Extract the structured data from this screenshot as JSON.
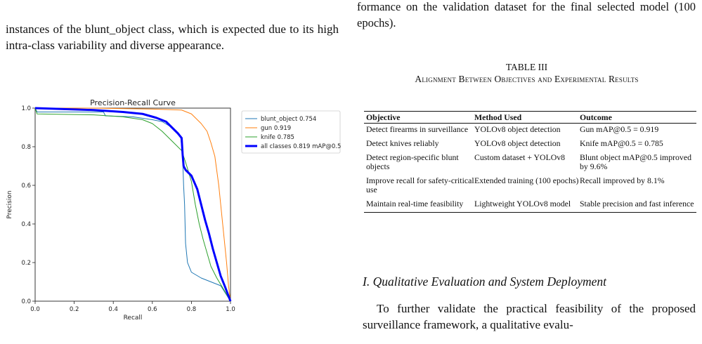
{
  "left_column": {
    "paragraph": "instances of the blunt_object class, which is expected due to its high intra-class variability and diverse appearance."
  },
  "chart_data": {
    "type": "line",
    "title": "Precision-Recall Curve",
    "xlabel": "Recall",
    "ylabel": "Precision",
    "xlim": [
      0.0,
      1.0
    ],
    "ylim": [
      0.0,
      1.0
    ],
    "x_ticks": [
      "0.0",
      "0.2",
      "0.4",
      "0.6",
      "0.8",
      "1.0"
    ],
    "y_ticks": [
      "0.0",
      "0.2",
      "0.4",
      "0.6",
      "0.8",
      "1.0"
    ],
    "grid": false,
    "legend_position": "outside-top-right",
    "series": [
      {
        "name": "blunt_object 0.754",
        "color": "#1f77b4",
        "width": 1,
        "points": [
          [
            0.0,
            1.0
          ],
          [
            0.01,
            0.98
          ],
          [
            0.35,
            0.98
          ],
          [
            0.36,
            0.96
          ],
          [
            0.5,
            0.955
          ],
          [
            0.6,
            0.94
          ],
          [
            0.65,
            0.93
          ],
          [
            0.7,
            0.9
          ],
          [
            0.73,
            0.87
          ],
          [
            0.745,
            0.85
          ],
          [
            0.75,
            0.8
          ],
          [
            0.755,
            0.75
          ],
          [
            0.76,
            0.6
          ],
          [
            0.765,
            0.5
          ],
          [
            0.77,
            0.3
          ],
          [
            0.78,
            0.2
          ],
          [
            0.8,
            0.15
          ],
          [
            0.85,
            0.12
          ],
          [
            0.9,
            0.1
          ],
          [
            0.95,
            0.08
          ],
          [
            1.0,
            0.0
          ]
        ]
      },
      {
        "name": "gun 0.919",
        "color": "#ff7f0e",
        "width": 1,
        "points": [
          [
            0.0,
            1.0
          ],
          [
            0.3,
            1.0
          ],
          [
            0.6,
            0.995
          ],
          [
            0.75,
            0.99
          ],
          [
            0.8,
            0.97
          ],
          [
            0.85,
            0.92
          ],
          [
            0.88,
            0.88
          ],
          [
            0.9,
            0.82
          ],
          [
            0.92,
            0.75
          ],
          [
            0.94,
            0.6
          ],
          [
            0.95,
            0.5
          ],
          [
            0.96,
            0.4
          ],
          [
            0.97,
            0.3
          ],
          [
            0.98,
            0.2
          ],
          [
            0.99,
            0.08
          ],
          [
            1.0,
            0.0
          ]
        ]
      },
      {
        "name": "knife 0.785",
        "color": "#2ca02c",
        "width": 1,
        "points": [
          [
            0.0,
            1.0
          ],
          [
            0.01,
            0.97
          ],
          [
            0.3,
            0.965
          ],
          [
            0.45,
            0.955
          ],
          [
            0.55,
            0.94
          ],
          [
            0.6,
            0.92
          ],
          [
            0.65,
            0.88
          ],
          [
            0.7,
            0.83
          ],
          [
            0.75,
            0.78
          ],
          [
            0.77,
            0.72
          ],
          [
            0.8,
            0.62
          ],
          [
            0.82,
            0.5
          ],
          [
            0.84,
            0.4
          ],
          [
            0.86,
            0.32
          ],
          [
            0.88,
            0.25
          ],
          [
            0.9,
            0.18
          ],
          [
            0.93,
            0.12
          ],
          [
            0.96,
            0.07
          ],
          [
            1.0,
            0.0
          ]
        ]
      },
      {
        "name": "all classes 0.819 mAP@0.5",
        "color": "#0000ff",
        "width": 3,
        "points": [
          [
            0.0,
            1.0
          ],
          [
            0.3,
            0.99
          ],
          [
            0.45,
            0.98
          ],
          [
            0.55,
            0.97
          ],
          [
            0.62,
            0.95
          ],
          [
            0.67,
            0.93
          ],
          [
            0.7,
            0.9
          ],
          [
            0.73,
            0.87
          ],
          [
            0.75,
            0.845
          ],
          [
            0.755,
            0.76
          ],
          [
            0.76,
            0.7
          ],
          [
            0.77,
            0.68
          ],
          [
            0.8,
            0.65
          ],
          [
            0.83,
            0.58
          ],
          [
            0.85,
            0.5
          ],
          [
            0.87,
            0.42
          ],
          [
            0.89,
            0.35
          ],
          [
            0.91,
            0.27
          ],
          [
            0.93,
            0.2
          ],
          [
            0.95,
            0.13
          ],
          [
            0.97,
            0.08
          ],
          [
            1.0,
            0.0
          ]
        ]
      }
    ]
  },
  "right_column": {
    "paragraph_top": "formance on the validation dataset for the final selected model (100 epochs).",
    "table_caption_title": "TABLE III",
    "table_caption_subtitle": "Alignment Between Objectives and Experimental Results",
    "table": {
      "headers": [
        "Objective",
        "Method Used",
        "Outcome"
      ],
      "rows": [
        [
          "Detect firearms in surveillance",
          "YOLOv8 object detection",
          "Gun mAP@0.5 = 0.919"
        ],
        [
          "Detect knives reliably",
          "YOLOv8 object detection",
          "Knife mAP@0.5 = 0.785"
        ],
        [
          "Detect region-specific blunt objects",
          "Custom dataset + YOLOv8",
          "Blunt object mAP@0.5 improved by 9.6%"
        ],
        [
          "Improve recall for safety-critical use",
          "Extended training (100 epochs)",
          "Recall improved by 8.1%"
        ],
        [
          "Maintain real-time feasibility",
          "Lightweight YOLOv8 model",
          "Stable precision and fast inference"
        ]
      ]
    },
    "section_heading": "I. Qualitative Evaluation and System Deployment",
    "paragraph_bottom": "To further validate the practical feasibility of the proposed surveillance framework, a qualitative evalu-"
  }
}
